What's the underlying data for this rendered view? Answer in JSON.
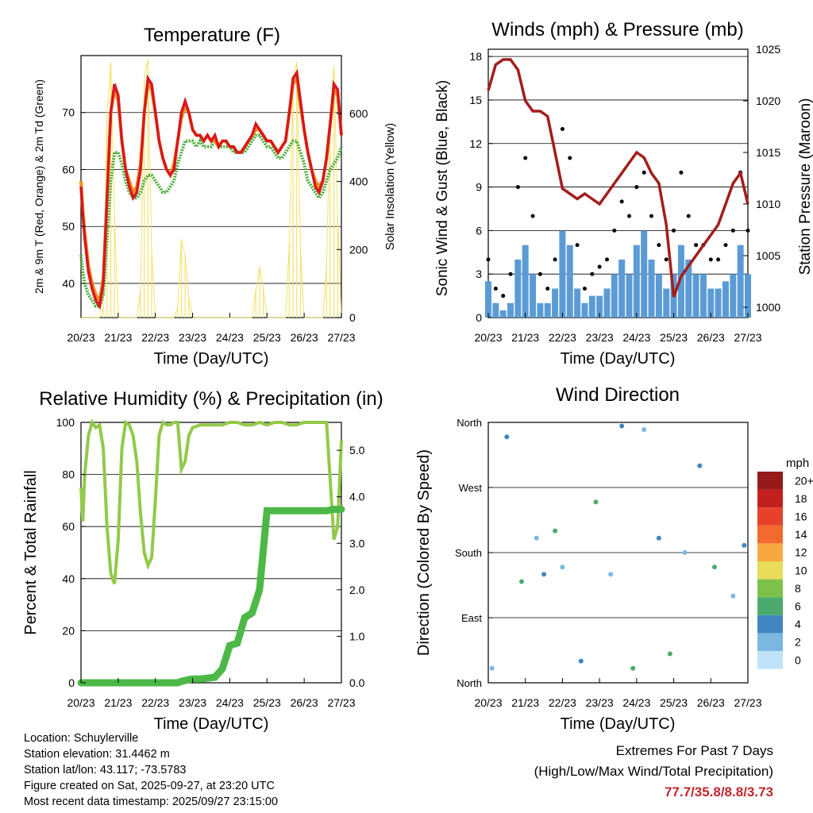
{
  "x_ticks": [
    "20/23",
    "21/23",
    "22/23",
    "23/23",
    "24/23",
    "25/23",
    "26/23",
    "27/23"
  ],
  "colors": {
    "temp_red": "#d7191c",
    "temp_orange": "#f28e1e",
    "dew_green": "#4aae38",
    "solar_yellow": "#f3e26b",
    "wind_blue": "#5b9bd5",
    "gust_black": "#000000",
    "pressure_maroon": "#a31d1d",
    "rh_green": "#93c94a",
    "precip_green": "#4db848"
  },
  "chart_data": [
    {
      "type": "line",
      "title": "Temperature (F)",
      "xlabel": "Time (Day/UTC)",
      "ylabel": "2m & 9m T (Red, Orange) & 2m Td (Green)",
      "y2label": "Solar Insolation (Yellow)",
      "ylim": [
        34,
        80
      ],
      "y_ticks": [
        "40",
        "50",
        "60",
        "70"
      ],
      "y2lim": [
        0,
        770
      ],
      "y2_ticks": [
        "0",
        "200",
        "400",
        "600"
      ],
      "days": [
        0,
        0.05,
        0.1,
        0.2,
        0.3,
        0.4,
        0.5,
        0.6,
        0.7,
        0.8,
        0.9,
        1.0,
        1.1,
        1.2,
        1.3,
        1.4,
        1.5,
        1.6,
        1.7,
        1.8,
        1.9,
        2.0,
        2.1,
        2.2,
        2.3,
        2.4,
        2.5,
        2.6,
        2.7,
        2.8,
        2.9,
        3.0,
        3.1,
        3.2,
        3.3,
        3.4,
        3.5,
        3.6,
        3.7,
        3.8,
        3.9,
        4.0,
        4.1,
        4.2,
        4.3,
        4.4,
        4.5,
        4.6,
        4.7,
        4.8,
        4.9,
        5.0,
        5.1,
        5.2,
        5.3,
        5.4,
        5.5,
        5.6,
        5.7,
        5.8,
        5.9,
        6.0,
        6.1,
        6.2,
        6.3,
        6.4,
        6.5,
        6.6,
        6.7,
        6.8,
        6.9,
        7.0
      ],
      "series": [
        {
          "name": "2m T",
          "values": [
            57,
            52,
            48,
            42,
            39,
            37,
            36,
            40,
            55,
            70,
            75,
            73,
            65,
            60,
            57,
            55,
            56,
            60,
            70,
            76,
            75,
            70,
            65,
            62,
            60,
            59,
            60,
            65,
            70,
            72,
            70,
            67,
            66,
            66,
            65,
            66,
            65,
            66,
            64,
            65,
            65,
            64,
            64,
            63,
            63,
            64,
            65,
            66,
            68,
            67,
            66,
            65,
            65,
            64,
            63,
            64,
            65,
            70,
            76,
            77,
            72,
            67,
            63,
            60,
            57,
            56,
            58,
            62,
            68,
            75,
            74,
            66
          ]
        },
        {
          "name": "9m T",
          "values": [
            58,
            53,
            49,
            43,
            40,
            38,
            37,
            41,
            55,
            70,
            74,
            72,
            65,
            60,
            58,
            56,
            57,
            61,
            70,
            75,
            74,
            70,
            65,
            62,
            60,
            59,
            61,
            65,
            69,
            71,
            70,
            67,
            66,
            66,
            65,
            66,
            65,
            65,
            64,
            65,
            65,
            64,
            64,
            63,
            63,
            64,
            65,
            66,
            67,
            67,
            66,
            65,
            65,
            64,
            63,
            64,
            65,
            70,
            75,
            76,
            71,
            67,
            63,
            60,
            58,
            57,
            58,
            62,
            68,
            74,
            73,
            66
          ]
        },
        {
          "name": "2m Td",
          "values": [
            45,
            42,
            40,
            38,
            37,
            36,
            36,
            38,
            48,
            58,
            63,
            63,
            61,
            58,
            56,
            55,
            55,
            56,
            58,
            59,
            59,
            58,
            57,
            56,
            56,
            57,
            58,
            61,
            63,
            65,
            65,
            65,
            64,
            65,
            64,
            64,
            64,
            65,
            64,
            64,
            64,
            64,
            63,
            63,
            63,
            63,
            64,
            65,
            66,
            66,
            65,
            64,
            64,
            63,
            62,
            62,
            63,
            64,
            65,
            65,
            63,
            61,
            58,
            57,
            56,
            55,
            56,
            58,
            60,
            61,
            62,
            64
          ]
        },
        {
          "name": "Solar Insolation",
          "values": [
            0,
            0,
            0,
            0,
            0,
            0,
            0,
            30,
            600,
            750,
            300,
            0,
            0,
            0,
            0,
            0,
            0,
            80,
            700,
            760,
            200,
            0,
            0,
            0,
            0,
            0,
            0,
            30,
            230,
            180,
            60,
            0,
            0,
            0,
            0,
            0,
            0,
            0,
            0,
            0,
            0,
            0,
            0,
            0,
            0,
            0,
            0,
            0,
            80,
            150,
            90,
            0,
            0,
            0,
            0,
            0,
            0,
            220,
            700,
            750,
            200,
            0,
            0,
            0,
            0,
            0,
            0,
            150,
            600,
            740,
            300,
            0
          ]
        }
      ]
    },
    {
      "type": "scatter",
      "title": "Winds (mph) & Pressure (mb)",
      "xlabel": "Time (Day/UTC)",
      "ylabel": "Sonic Wind & Gust (Blue, Black)",
      "y2label": "Station Pressure (Maroon)",
      "ylim": [
        0,
        18.5
      ],
      "y_ticks": [
        "0",
        "3",
        "6",
        "9",
        "12",
        "15",
        "18"
      ],
      "y2lim": [
        999,
        1025
      ],
      "y2_ticks": [
        "1000",
        "1005",
        "1010",
        "1015",
        "1020",
        "1025"
      ],
      "days": [
        0,
        0.2,
        0.4,
        0.6,
        0.8,
        1.0,
        1.2,
        1.4,
        1.6,
        1.8,
        2.0,
        2.2,
        2.4,
        2.6,
        2.8,
        3.0,
        3.2,
        3.4,
        3.6,
        3.8,
        4.0,
        4.2,
        4.4,
        4.6,
        4.8,
        5.0,
        5.2,
        5.4,
        5.6,
        5.8,
        6.0,
        6.2,
        6.4,
        6.6,
        6.8,
        7.0
      ],
      "series": [
        {
          "name": "Sonic Wind",
          "values": [
            2.5,
            1,
            0.5,
            1,
            4,
            5,
            3,
            1,
            1,
            2,
            6,
            5,
            2,
            1,
            1.5,
            1.5,
            2,
            3,
            4,
            3,
            5,
            6,
            4,
            3,
            2,
            3,
            5,
            4,
            3,
            3,
            2,
            2,
            2.5,
            3,
            5,
            3
          ]
        },
        {
          "name": "Gust",
          "values": [
            4,
            2,
            1.5,
            3,
            9,
            11,
            7,
            3,
            2,
            4,
            13,
            11,
            5,
            2,
            3,
            3.5,
            4,
            6,
            8,
            7,
            9,
            10,
            7,
            5,
            4,
            6,
            10,
            7,
            5,
            5,
            4,
            4,
            5,
            6,
            10,
            6
          ]
        },
        {
          "name": "Station Pressure",
          "values": [
            1021,
            1023.5,
            1024,
            1024,
            1023,
            1020,
            1019,
            1019,
            1018.5,
            1015,
            1011.5,
            1011,
            1010.5,
            1011,
            1010.5,
            1010,
            1011,
            1012,
            1013,
            1014,
            1015,
            1014.5,
            1013,
            1012,
            1008,
            1001,
            1003,
            1004,
            1005,
            1006,
            1007,
            1008,
            1010,
            1012,
            1013,
            1010
          ]
        }
      ]
    },
    {
      "type": "line",
      "title": "Relative Humidity (%) & Precipitation (in)",
      "xlabel": "Time (Day/UTC)",
      "ylabel": "Percent & Total Rainfall",
      "ylim": [
        0,
        100
      ],
      "y_ticks": [
        "0",
        "20",
        "40",
        "60",
        "80",
        "100"
      ],
      "y2lim": [
        0,
        5.6
      ],
      "y2_ticks": [
        "0.0",
        "1.0",
        "2.0",
        "3.0",
        "4.0",
        "5.0"
      ],
      "days": [
        0,
        0.05,
        0.1,
        0.2,
        0.3,
        0.4,
        0.5,
        0.6,
        0.7,
        0.8,
        0.9,
        1.0,
        1.1,
        1.2,
        1.3,
        1.4,
        1.5,
        1.6,
        1.7,
        1.8,
        1.9,
        2.0,
        2.1,
        2.2,
        2.3,
        2.4,
        2.5,
        2.6,
        2.7,
        2.8,
        2.9,
        3.0,
        3.2,
        3.4,
        3.6,
        3.8,
        4.0,
        4.2,
        4.4,
        4.6,
        4.8,
        5.0,
        5.2,
        5.4,
        5.6,
        5.8,
        6.0,
        6.2,
        6.4,
        6.6,
        6.8,
        6.9,
        7.0
      ],
      "series": [
        {
          "name": "Relative Humidity",
          "values": [
            75,
            62,
            80,
            95,
            100,
            98,
            99,
            90,
            60,
            42,
            38,
            55,
            90,
            100,
            99,
            95,
            85,
            65,
            50,
            45,
            48,
            70,
            95,
            100,
            99,
            99,
            100,
            100,
            82,
            85,
            95,
            98,
            99,
            99,
            99,
            99,
            100,
            100,
            99,
            99,
            100,
            99,
            100,
            100,
            99,
            99,
            100,
            100,
            100,
            100,
            55,
            60,
            93
          ]
        },
        {
          "name": "Total Rainfall",
          "values": [
            0,
            0,
            0,
            0,
            0,
            0,
            0,
            0,
            0,
            0,
            0,
            0,
            0,
            0,
            0,
            0,
            0,
            0,
            0,
            0,
            0,
            0,
            0,
            0,
            0,
            0,
            0,
            0,
            0.03,
            0.05,
            0.07,
            0.08,
            0.08,
            0.1,
            0.12,
            0.3,
            0.8,
            0.85,
            1.4,
            1.5,
            2.0,
            3.7,
            3.7,
            3.7,
            3.7,
            3.7,
            3.7,
            3.7,
            3.7,
            3.7,
            3.73,
            3.73,
            3.73
          ]
        }
      ]
    },
    {
      "type": "scatter",
      "title": "Wind Direction",
      "xlabel": "Time (Day/UTC)",
      "ylabel": "Direction (Colored By Speed)",
      "y_ticks": [
        "North",
        "East",
        "South",
        "West",
        "North"
      ],
      "ylim_degrees": [
        0,
        360
      ],
      "colorbar": {
        "units": "mph",
        "labels": [
          "0",
          "2",
          "4",
          "6",
          "8",
          "10",
          "12",
          "14",
          "16",
          "18",
          "20+"
        ],
        "colors": [
          "#bfe4f7",
          "#7ab8e2",
          "#3f86c1",
          "#4caa6e",
          "#7cc24a",
          "#e8dc5a",
          "#f7a841",
          "#f26a2d",
          "#e8412b",
          "#c1201e",
          "#961a1a"
        ]
      },
      "days": [
        0.1,
        0.5,
        0.9,
        1.3,
        1.5,
        1.8,
        2.0,
        2.5,
        2.9,
        3.3,
        3.6,
        3.9,
        4.2,
        4.6,
        4.9,
        5.3,
        5.7,
        6.1,
        6.6,
        6.9
      ],
      "series": [
        {
          "name": "Direction (deg)",
          "values": [
            20,
            340,
            140,
            200,
            150,
            210,
            160,
            30,
            250,
            150,
            355,
            20,
            350,
            200,
            40,
            180,
            300,
            160,
            120,
            190
          ]
        }
      ]
    }
  ],
  "station": {
    "location": "Location: Schuylerville",
    "elevation": "Station elevation: 31.4462 m",
    "latlon": "Station lat/lon: 43.117; -73.5783",
    "created": "Figure created on Sat, 2025-09-27, at 23:20 UTC",
    "recent": "Most recent data timestamp: 2025/09/27 23:15:00"
  },
  "extremes": {
    "title": "Extremes For Past 7 Days",
    "subtitle": "(High/Low/Max Wind/Total Precipitation)",
    "values": "77.7/35.8/8.8/3.73"
  }
}
